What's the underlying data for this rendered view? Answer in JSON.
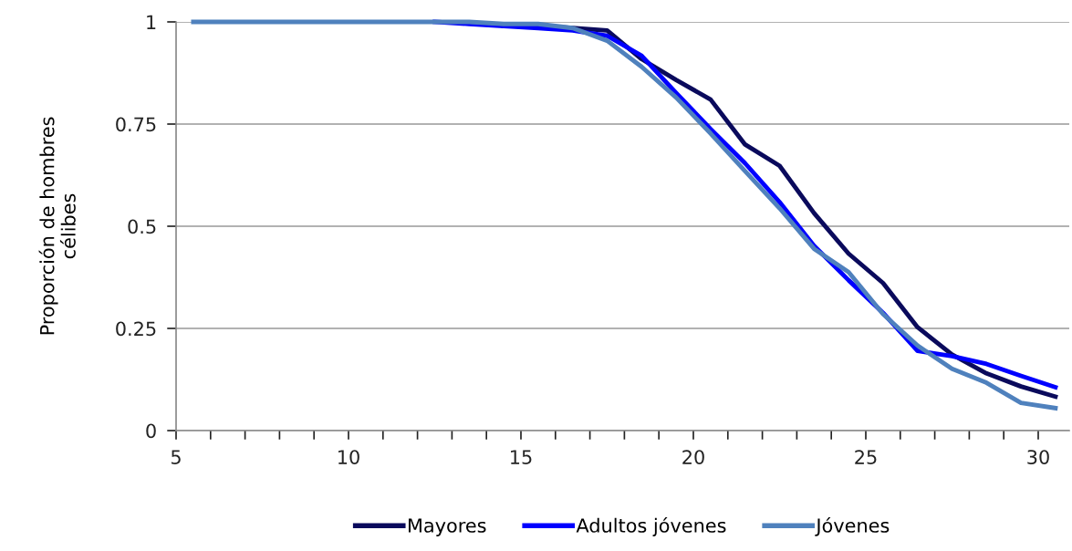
{
  "chart_data": {
    "type": "line",
    "ylabel": "Proporción de hombres\ncélibes",
    "x": [
      5.5,
      6.5,
      7.5,
      8.5,
      9.5,
      10.5,
      11.5,
      12.5,
      13.5,
      14.5,
      15.5,
      16.5,
      17.5,
      18.5,
      19.5,
      20.5,
      21.5,
      22.5,
      23.5,
      24.5,
      25.5,
      26.5,
      27.5,
      28.5,
      29.5,
      30.5
    ],
    "series": [
      {
        "name": "Mayores",
        "color": "#0a0a5c",
        "values": [
          null,
          null,
          null,
          null,
          null,
          null,
          null,
          null,
          null,
          0.99,
          0.99,
          0.985,
          0.979,
          0.909,
          0.858,
          0.81,
          0.7,
          0.648,
          0.532,
          0.433,
          0.361,
          0.253,
          0.186,
          0.14,
          0.108,
          0.083
        ]
      },
      {
        "name": "Adultos jóvenes",
        "color": "#0000ff",
        "values": [
          null,
          null,
          null,
          null,
          null,
          null,
          null,
          1,
          0.995,
          0.99,
          0.985,
          0.979,
          0.966,
          0.917,
          0.826,
          0.738,
          0.654,
          0.559,
          0.452,
          0.368,
          0.288,
          0.195,
          0.182,
          0.163,
          0.134,
          0.106
        ]
      },
      {
        "name": "Jóvenes",
        "color": "#4f81bd",
        "values": [
          1,
          1,
          1,
          1,
          1,
          1,
          1,
          1,
          1,
          0.995,
          0.995,
          0.985,
          0.954,
          0.89,
          0.815,
          0.727,
          0.635,
          0.544,
          0.445,
          0.388,
          0.285,
          0.208,
          0.151,
          0.117,
          0.068,
          0.055
        ]
      }
    ],
    "xlim": [
      5,
      30.9
    ],
    "xticks": [
      5,
      {
        "value": 6,
        "label": null
      },
      {
        "value": 7,
        "label": null
      },
      {
        "value": 8,
        "label": null
      },
      {
        "value": 9,
        "label": null
      },
      10,
      {
        "value": 11,
        "label": null
      },
      {
        "value": 12,
        "label": null
      },
      {
        "value": 13,
        "label": null
      },
      {
        "value": 14,
        "label": null
      },
      15,
      {
        "value": 16,
        "label": null
      },
      {
        "value": 17,
        "label": null
      },
      {
        "value": 18,
        "label": null
      },
      {
        "value": 19,
        "label": null
      },
      20,
      {
        "value": 21,
        "label": null
      },
      {
        "value": 22,
        "label": null
      },
      {
        "value": 23,
        "label": null
      },
      {
        "value": 24,
        "label": null
      },
      25,
      {
        "value": 26,
        "label": null
      },
      {
        "value": 27,
        "label": null
      },
      {
        "value": 28,
        "label": null
      },
      {
        "value": 29,
        "label": null
      },
      30
    ],
    "ylim": [
      0,
      1
    ],
    "yticks": [
      0,
      0.25,
      0.5,
      0.75,
      1
    ],
    "grid": "y",
    "legend": "bottom",
    "marker": "none",
    "line_style": "solid"
  }
}
